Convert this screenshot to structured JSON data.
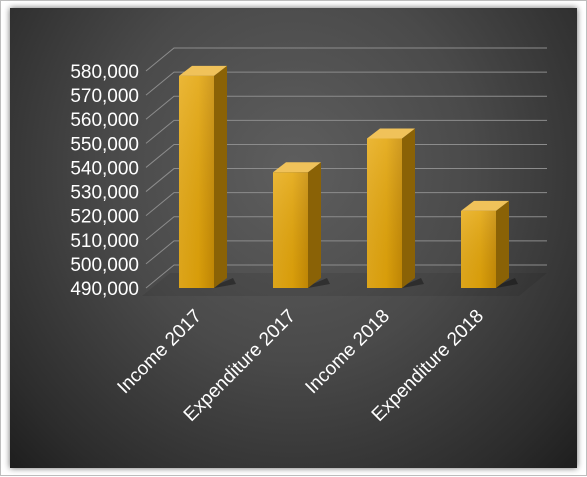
{
  "chart_data": {
    "type": "bar",
    "categories": [
      "Income 2017",
      "Expenditure  2017",
      "Income 2018",
      "Expenditure 2018"
    ],
    "values": [
      578000,
      538000,
      552000,
      522000
    ],
    "ylim": [
      490000,
      580000
    ],
    "yticks": [
      490000,
      500000,
      510000,
      520000,
      530000,
      540000,
      550000,
      560000,
      570000,
      580000
    ],
    "ytick_labels": [
      "490,000",
      "500,000",
      "510,000",
      "520,000",
      "530,000",
      "540,000",
      "550,000",
      "560,000",
      "570,000",
      "580,000"
    ],
    "title": "",
    "xlabel": "",
    "ylabel": "",
    "grid": true,
    "colors": {
      "bar_front": "#e3a50a",
      "bar_side": "#8a6206",
      "bar_top": "#f0c25a",
      "grid": "#8c8c8c",
      "text": "#ffffff"
    }
  }
}
